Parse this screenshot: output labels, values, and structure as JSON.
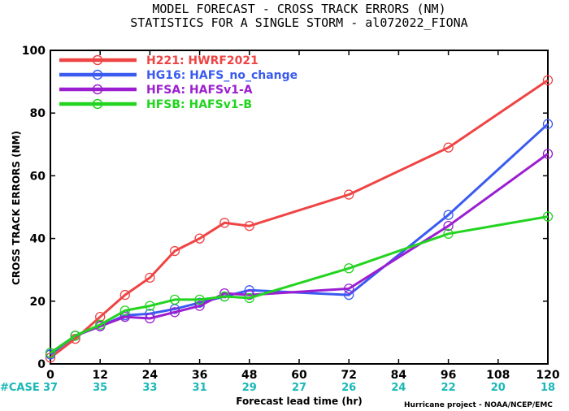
{
  "chart_data": {
    "type": "line",
    "title_line1": "MODEL FORECAST - CROSS TRACK ERRORS (NM)",
    "title_line2": "STATISTICS FOR A SINGLE STORM - al072022_FIONA",
    "xlabel": "Forecast lead time (hr)",
    "ylabel": "CROSS TRACK ERRORS (NM)",
    "xlim": [
      0,
      120
    ],
    "ylim": [
      0,
      100
    ],
    "x_ticks": [
      0,
      12,
      24,
      36,
      48,
      60,
      72,
      84,
      96,
      108,
      120
    ],
    "y_ticks": [
      0,
      20,
      40,
      60,
      80,
      100
    ],
    "case_label": "#CASE",
    "case_x": [
      0,
      12,
      24,
      36,
      48,
      60,
      72,
      84,
      96,
      108,
      120
    ],
    "case_counts": [
      37,
      35,
      33,
      31,
      29,
      27,
      26,
      24,
      22,
      20,
      18
    ],
    "credit": "Hurricane project - NOAA/NCEP/EMC",
    "grid": false,
    "legend_position": "top-left",
    "series": [
      {
        "name": "H221: HWRF2021",
        "color": "#ef4444",
        "x": [
          0,
          6,
          12,
          18,
          24,
          30,
          36,
          42,
          48,
          72,
          96,
          120
        ],
        "y": [
          2,
          8,
          15,
          22,
          27.5,
          36,
          40,
          45,
          44,
          54,
          69,
          90.5
        ]
      },
      {
        "name": "HG16: HAFS_no_change",
        "color": "#3b5bf0",
        "x": [
          0,
          6,
          12,
          18,
          24,
          30,
          36,
          42,
          48,
          72,
          96,
          120
        ],
        "y": [
          3,
          9,
          12,
          15.5,
          16,
          17.5,
          19.5,
          21.5,
          23.5,
          22,
          47.5,
          76.5
        ]
      },
      {
        "name": "HFSA: HAFSv1-A",
        "color": "#9b1fd1",
        "x": [
          0,
          6,
          12,
          18,
          24,
          30,
          36,
          42,
          48,
          72,
          96,
          120
        ],
        "y": [
          3.5,
          9,
          12,
          15,
          14.5,
          16.5,
          18.5,
          22.5,
          22,
          24,
          44,
          67
        ]
      },
      {
        "name": "HFSB: HAFSv1-B",
        "color": "#22d41f",
        "x": [
          0,
          6,
          12,
          18,
          24,
          30,
          36,
          42,
          48,
          72,
          96,
          120
        ],
        "y": [
          3.5,
          9,
          12.5,
          17,
          18.5,
          20.5,
          20.5,
          21.5,
          21,
          30.5,
          41.5,
          47
        ]
      }
    ],
    "case_color": "#1ab8b8"
  }
}
